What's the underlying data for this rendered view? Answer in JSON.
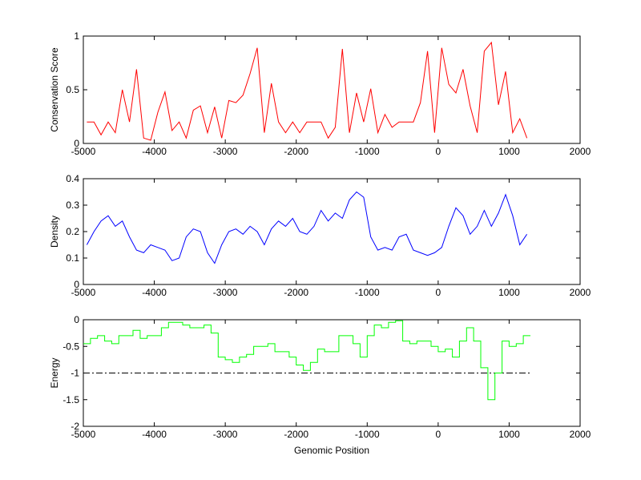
{
  "chart_data": [
    {
      "type": "line",
      "title": "",
      "xlabel": "",
      "ylabel": "Conservation Score",
      "xlim": [
        -5000,
        2000
      ],
      "ylim": [
        0,
        1
      ],
      "xticks": [
        "-5000",
        "-4000",
        "-3000",
        "-2000",
        "-1000",
        "0",
        "1000",
        "2000"
      ],
      "yticks": [
        "0",
        "0.5",
        "1"
      ],
      "grid": false,
      "series": [
        {
          "name": "conservation",
          "color": "#ff0000",
          "x_start": -4950,
          "x_step": 100,
          "values": [
            0.2,
            0.2,
            0.08,
            0.2,
            0.1,
            0.5,
            0.2,
            0.69,
            0.05,
            0.03,
            0.29,
            0.48,
            0.12,
            0.2,
            0.05,
            0.31,
            0.35,
            0.1,
            0.34,
            0.05,
            0.4,
            0.38,
            0.45,
            0.65,
            0.89,
            0.1,
            0.56,
            0.2,
            0.1,
            0.2,
            0.1,
            0.2,
            0.2,
            0.2,
            0.05,
            0.15,
            0.88,
            0.1,
            0.47,
            0.2,
            0.51,
            0.1,
            0.27,
            0.15,
            0.2,
            0.2,
            0.2,
            0.38,
            0.86,
            0.1,
            0.89,
            0.55,
            0.47,
            0.69,
            0.35,
            0.1,
            0.86,
            0.94,
            0.36,
            0.67,
            0.1,
            0.23,
            0.05
          ]
        }
      ]
    },
    {
      "type": "line",
      "title": "",
      "xlabel": "",
      "ylabel": "Density",
      "xlim": [
        -5000,
        2000
      ],
      "ylim": [
        0,
        0.4
      ],
      "xticks": [
        "-5000",
        "-4000",
        "-3000",
        "-2000",
        "-1000",
        "0",
        "1000",
        "2000"
      ],
      "yticks": [
        "0",
        "0.1",
        "0.2",
        "0.3",
        "0.4"
      ],
      "grid": false,
      "series": [
        {
          "name": "density",
          "color": "#0000ff",
          "x_start": -4950,
          "x_step": 100,
          "values": [
            0.15,
            0.2,
            0.24,
            0.26,
            0.22,
            0.24,
            0.18,
            0.13,
            0.12,
            0.15,
            0.14,
            0.13,
            0.09,
            0.1,
            0.18,
            0.21,
            0.2,
            0.12,
            0.08,
            0.15,
            0.2,
            0.21,
            0.19,
            0.22,
            0.2,
            0.15,
            0.21,
            0.24,
            0.22,
            0.25,
            0.2,
            0.19,
            0.22,
            0.28,
            0.24,
            0.27,
            0.25,
            0.32,
            0.35,
            0.33,
            0.18,
            0.13,
            0.14,
            0.13,
            0.18,
            0.19,
            0.13,
            0.12,
            0.11,
            0.12,
            0.14,
            0.22,
            0.29,
            0.26,
            0.19,
            0.22,
            0.28,
            0.22,
            0.27,
            0.34,
            0.26,
            0.15,
            0.19
          ]
        }
      ]
    },
    {
      "type": "line",
      "title": "",
      "xlabel": "Genomic Position",
      "ylabel": "Energy",
      "xlim": [
        -5000,
        2000
      ],
      "ylim": [
        -2,
        0
      ],
      "xticks": [
        "-5000",
        "-4000",
        "-3000",
        "-2000",
        "-1000",
        "0",
        "1000",
        "2000"
      ],
      "yticks": [
        "-2",
        "-1.5",
        "-1",
        "-0.5",
        "0"
      ],
      "grid": false,
      "reference_line": {
        "y": -1,
        "x_range": [
          -5000,
          1300
        ],
        "style": "dash-dot",
        "color": "#000000"
      },
      "series": [
        {
          "name": "energy",
          "color": "#00ff00",
          "x_start": -4950,
          "x_step": 100,
          "values": [
            -0.45,
            -0.35,
            -0.3,
            -0.4,
            -0.45,
            -0.3,
            -0.3,
            -0.2,
            -0.35,
            -0.3,
            -0.3,
            -0.15,
            -0.05,
            -0.05,
            -0.1,
            -0.15,
            -0.15,
            -0.1,
            -0.25,
            -0.7,
            -0.75,
            -0.8,
            -0.7,
            -0.65,
            -0.5,
            -0.5,
            -0.45,
            -0.6,
            -0.6,
            -0.7,
            -0.85,
            -0.95,
            -0.8,
            -0.55,
            -0.6,
            -0.6,
            -0.3,
            -0.3,
            -0.45,
            -0.7,
            -0.3,
            -0.1,
            -0.15,
            -0.05,
            -0.02,
            -0.4,
            -0.45,
            -0.4,
            -0.4,
            -0.5,
            -0.6,
            -0.55,
            -0.7,
            -0.4,
            -0.15,
            -0.4,
            -0.9,
            -1.5,
            -1.0,
            -0.4,
            -0.5,
            -0.45,
            -0.3
          ]
        }
      ]
    }
  ]
}
